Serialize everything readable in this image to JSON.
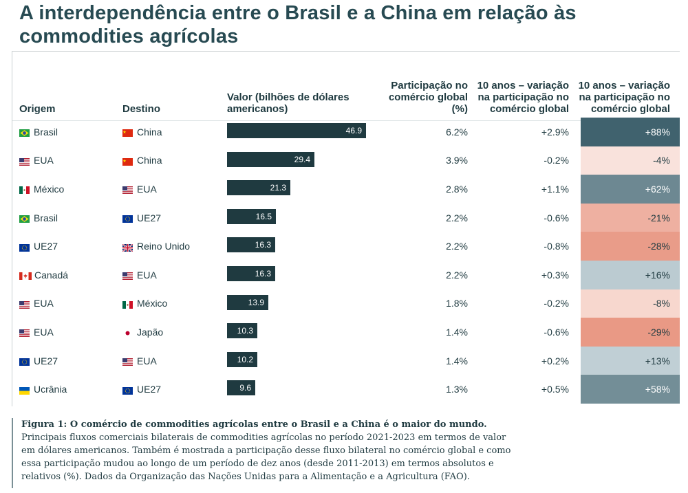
{
  "title": "A interdependência entre o Brasil e a China em relação às commodities agrícolas",
  "headers": {
    "origem": "Origem",
    "destino": "Destino",
    "valor": "Valor (bilhões de dólares americanos)",
    "participacao": "Participação no comércio global (%)",
    "var_abs": "10 anos – variação na participação no comércio global",
    "var_rel": "10 anos – variação na participação no comércio global"
  },
  "chart_data": {
    "type": "table",
    "title": "A interdependência entre o Brasil e a China em relação às commodities agrícolas",
    "columns": [
      "Origem",
      "Destino",
      "Valor (bilhões de dólares americanos)",
      "Participação no comércio global (%)",
      "10 anos – variação na participação no comércio global",
      "10 anos – variação na participação no comércio global"
    ],
    "rows": [
      {
        "origem": "Brasil",
        "origem_flag": "brazil-flag-icon",
        "destino": "China",
        "destino_flag": "china-flag-icon",
        "valor": 46.9,
        "participacao": "6.2%",
        "var_abs": "+2.9%",
        "var_rel": "+88%",
        "rel_value": 88
      },
      {
        "origem": "EUA",
        "origem_flag": "usa-flag-icon",
        "destino": "China",
        "destino_flag": "china-flag-icon",
        "valor": 29.4,
        "participacao": "3.9%",
        "var_abs": "-0.2%",
        "var_rel": "-4%",
        "rel_value": -4
      },
      {
        "origem": "México",
        "origem_flag": "mexico-flag-icon",
        "destino": "EUA",
        "destino_flag": "usa-flag-icon",
        "valor": 21.3,
        "participacao": "2.8%",
        "var_abs": "+1.1%",
        "var_rel": "+62%",
        "rel_value": 62
      },
      {
        "origem": "Brasil",
        "origem_flag": "brazil-flag-icon",
        "destino": "UE27",
        "destino_flag": "eu-flag-icon",
        "valor": 16.5,
        "participacao": "2.2%",
        "var_abs": "-0.6%",
        "var_rel": "-21%",
        "rel_value": -21
      },
      {
        "origem": "UE27",
        "origem_flag": "eu-flag-icon",
        "destino": "Reino Unido",
        "destino_flag": "uk-flag-icon",
        "valor": 16.3,
        "participacao": "2.2%",
        "var_abs": "-0.8%",
        "var_rel": "-28%",
        "rel_value": -28
      },
      {
        "origem": "Canadá",
        "origem_flag": "canada-flag-icon",
        "destino": "EUA",
        "destino_flag": "usa-flag-icon",
        "valor": 16.3,
        "participacao": "2.2%",
        "var_abs": "+0.3%",
        "var_rel": "+16%",
        "rel_value": 16
      },
      {
        "origem": "EUA",
        "origem_flag": "usa-flag-icon",
        "destino": "México",
        "destino_flag": "mexico-flag-icon",
        "valor": 13.9,
        "participacao": "1.8%",
        "var_abs": "-0.2%",
        "var_rel": "-8%",
        "rel_value": -8
      },
      {
        "origem": "EUA",
        "origem_flag": "usa-flag-icon",
        "destino": "Japão",
        "destino_flag": "japan-flag-icon",
        "valor": 10.3,
        "participacao": "1.4%",
        "var_abs": "-0.6%",
        "var_rel": "-29%",
        "rel_value": -29
      },
      {
        "origem": "UE27",
        "origem_flag": "eu-flag-icon",
        "destino": "EUA",
        "destino_flag": "usa-flag-icon",
        "valor": 10.2,
        "participacao": "1.4%",
        "var_abs": "+0.2%",
        "var_rel": "+13%",
        "rel_value": 13
      },
      {
        "origem": "Ucrânia",
        "origem_flag": "ukraine-flag-icon",
        "destino": "UE27",
        "destino_flag": "eu-flag-icon",
        "valor": 9.6,
        "participacao": "1.3%",
        "var_abs": "+0.5%",
        "var_rel": "+58%",
        "rel_value": 58
      }
    ],
    "valor_max": 46.9
  },
  "caption": {
    "bold": "Figura 1: O comércio de commodities agrícolas entre o Brasil e a China é o maior do mundo.",
    "text": " Principais fluxos comerciais bilaterais de commodities agrícolas no período 2021-2023 em termos de valor em dólares americanos. Também é mostrada a participação desse fluxo bilateral no comércio global e como essa participação mudou ao longo de um período de dez anos (desde 2011-2013) em termos absolutos e relativos (%). Dados da Organização das Nações Unidas para a Alimentação e a Agricultura (FAO)."
  },
  "colors": {
    "bar": "#1f3a40",
    "positive_dark": "#3d5f6b",
    "negative_dark": "#e8907e",
    "text": "#1f3a40"
  }
}
